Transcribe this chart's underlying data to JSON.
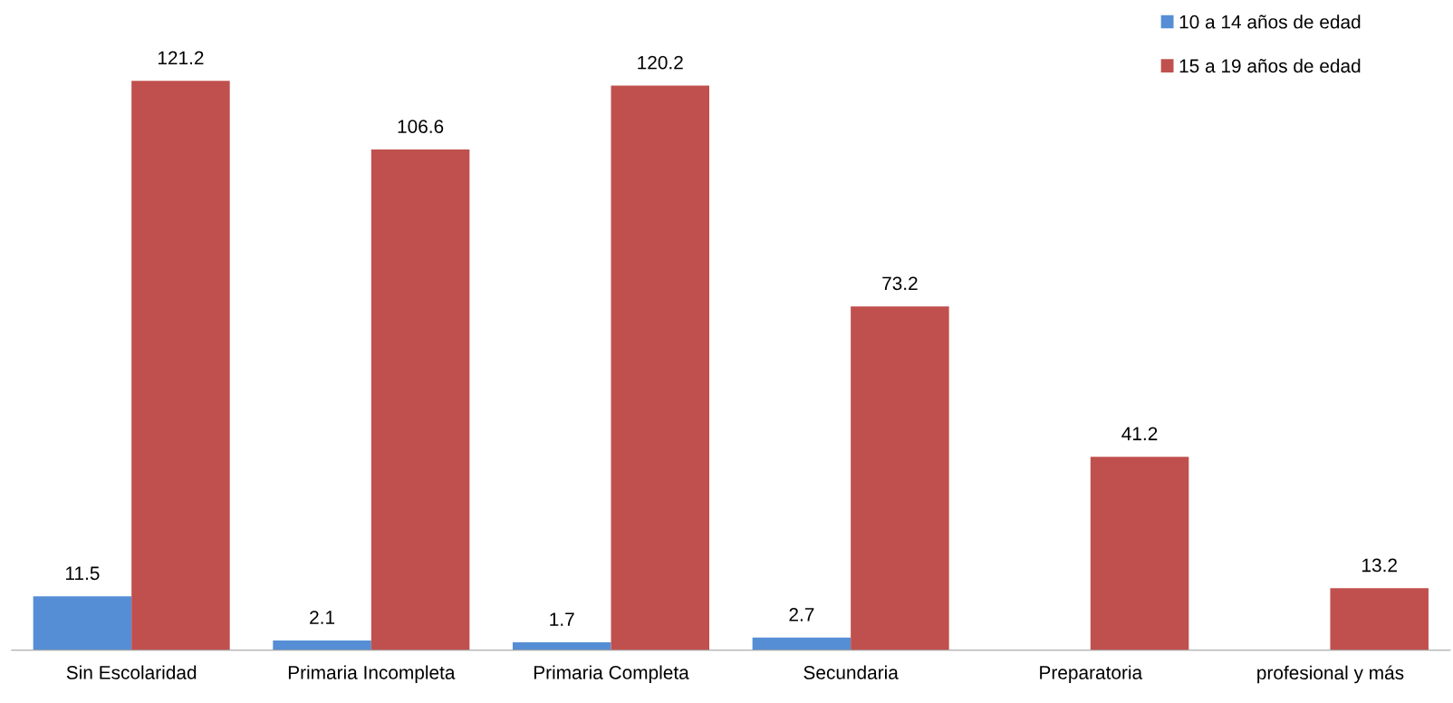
{
  "chart_data": {
    "type": "bar",
    "categories": [
      "Sin Escolaridad",
      "Primaria Incompleta",
      "Primaria Completa",
      "Secundaria",
      "Preparatoria",
      "profesional y más"
    ],
    "series": [
      {
        "name": "10 a 14 años de edad",
        "color": "#558ed5",
        "values": [
          11.5,
          2.1,
          1.7,
          2.7,
          null,
          null
        ]
      },
      {
        "name": "15 a 19 años de edad",
        "color": "#c0504d",
        "values": [
          121.2,
          106.6,
          120.2,
          73.2,
          41.2,
          13.2
        ]
      }
    ],
    "data_labels": true,
    "tick_labels": "x",
    "grid": false,
    "legend": "top right"
  }
}
